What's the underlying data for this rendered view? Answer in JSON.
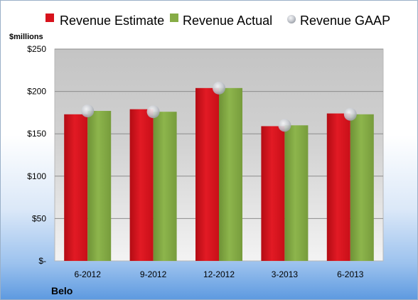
{
  "chart_data": {
    "type": "bar",
    "title": "",
    "xlabel": "",
    "ylabel": "$millions",
    "unit_label": "$millions",
    "footer": "Belo",
    "categories": [
      "6-2012",
      "9-2012",
      "12-2012",
      "3-2013",
      "6-2013"
    ],
    "series": [
      {
        "name": "Revenue Estimate",
        "type": "bar",
        "color": "#d7121c",
        "values": [
          173,
          179,
          204,
          159,
          174
        ]
      },
      {
        "name": "Revenue Actual",
        "type": "bar",
        "color": "#86ac46",
        "values": [
          177,
          176,
          204,
          160,
          173
        ]
      },
      {
        "name": "Revenue GAAP",
        "type": "marker",
        "color": "#c8ccd4",
        "values": [
          177,
          176,
          204,
          160,
          173
        ]
      }
    ],
    "ylim": [
      0,
      250
    ],
    "yticks": [
      0,
      50,
      100,
      150,
      200,
      250
    ],
    "ytick_labels": [
      "$-",
      "$50",
      "$100",
      "$150",
      "$200",
      "$250"
    ],
    "grid": true,
    "legend_position": "top"
  }
}
